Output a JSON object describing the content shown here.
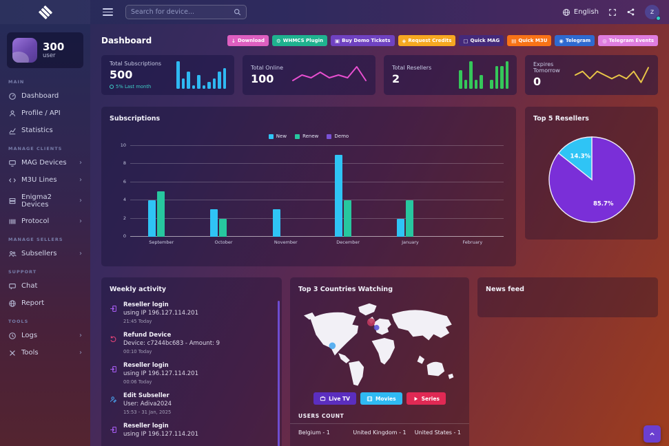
{
  "topbar": {
    "search_placeholder": "Search for device...",
    "language": "English",
    "avatar_initial": "z"
  },
  "header": {
    "title": "Dashboard",
    "badges": [
      {
        "label": "Download",
        "icon_char": "↓",
        "color": "#de5fc0"
      },
      {
        "label": "WHMCS Plugin",
        "icon_char": "⚙",
        "color": "#1fb28f"
      },
      {
        "label": "Buy Demo Tickets",
        "icon_char": "▣",
        "color": "#6f42c1"
      },
      {
        "label": "Request Credits",
        "icon_char": "◈",
        "color": "#f6a821"
      },
      {
        "label": "Quick MAG",
        "icon_char": "▢",
        "color": "#44297a"
      },
      {
        "label": "Quick M3U",
        "icon_char": "▤",
        "color": "#f97316"
      },
      {
        "label": "Telegram",
        "icon_char": "◉",
        "color": "#2e6ad1"
      },
      {
        "label": "Telegram Events",
        "icon_char": "◎",
        "color": "#df7ddf"
      }
    ]
  },
  "sidebar": {
    "user_count": "300",
    "user_label": "user",
    "sections": [
      {
        "title": "MAIN",
        "items": [
          {
            "label": "Dashboard"
          },
          {
            "label": "Profile / API"
          },
          {
            "label": "Statistics"
          }
        ]
      },
      {
        "title": "MANAGE CLIENTS",
        "items": [
          {
            "label": "MAG Devices",
            "chevron": "›"
          },
          {
            "label": "M3U Lines",
            "chevron": "›"
          },
          {
            "label": "Enigma2 Devices",
            "chevron": "›"
          },
          {
            "label": "Protocol",
            "chevron": "›"
          }
        ]
      },
      {
        "title": "MANAGE SELLERS",
        "items": [
          {
            "label": "Subsellers",
            "chevron": "›"
          }
        ]
      },
      {
        "title": "SUPPORT",
        "items": [
          {
            "label": "Chat"
          },
          {
            "label": "Report"
          }
        ]
      },
      {
        "title": "TOOLS",
        "items": [
          {
            "label": "Logs",
            "chevron": "›"
          },
          {
            "label": "Tools",
            "chevron": "›"
          }
        ]
      }
    ]
  },
  "stats": [
    {
      "label": "Total Subscriptions",
      "value": "500",
      "note": "5% Last month",
      "spark": {
        "type": "bar",
        "color": "#2fb9f2",
        "values": [
          8,
          3,
          5,
          1,
          4,
          1,
          2,
          3,
          5,
          6
        ]
      }
    },
    {
      "label": "Total Online",
      "value": "100",
      "spark": {
        "type": "line",
        "color": "#e84fd0",
        "values": [
          2,
          4,
          3,
          5,
          3,
          4,
          3,
          7,
          2
        ]
      }
    },
    {
      "label": "Total Resellers",
      "value": "2",
      "spark": {
        "type": "bar",
        "color": "#35c75a",
        "values": [
          4,
          2,
          6,
          2,
          3,
          0,
          2,
          5,
          5,
          6
        ]
      }
    },
    {
      "label": "Expires Tomorrow",
      "value": "0",
      "spark": {
        "type": "line",
        "color": "#e8c547",
        "values": [
          3,
          4,
          2,
          4,
          3,
          2,
          3,
          2,
          4,
          1,
          5
        ]
      }
    }
  ],
  "chart_data": [
    {
      "type": "bar",
      "title": "Subscriptions",
      "categories": [
        "September",
        "October",
        "November",
        "December",
        "January",
        "February"
      ],
      "series": [
        {
          "name": "New",
          "color": "#2fc4f5",
          "values": [
            4,
            3,
            3,
            9,
            2,
            0
          ]
        },
        {
          "name": "Renew",
          "color": "#27c79f",
          "values": [
            5,
            2,
            0,
            4,
            4,
            0
          ]
        },
        {
          "name": "Demo",
          "color": "#7a52d6",
          "values": [
            0,
            0,
            0,
            0,
            0,
            0
          ]
        }
      ],
      "ylim": [
        0,
        10
      ],
      "yticks": [
        0,
        2,
        4,
        6,
        8,
        10
      ],
      "grid": true,
      "legend_position": "top"
    },
    {
      "type": "pie",
      "title": "Top 5 Resellers",
      "labels": [
        "85.7%",
        "14.3%"
      ],
      "values": [
        85.7,
        14.3
      ],
      "colors": [
        "#7a2fd8",
        "#2fc4f5"
      ]
    }
  ],
  "activity": {
    "title": "Weekly activity",
    "items": [
      {
        "icon": "login-icon",
        "title": "Reseller login",
        "desc": "using IP 196.127.114.201",
        "time": "21:45 Today"
      },
      {
        "icon": "refund-icon",
        "title": "Refund Device",
        "desc": "Device: c7244bc683 - Amount: 9",
        "time": "00:10 Today"
      },
      {
        "icon": "login-icon",
        "title": "Reseller login",
        "desc": "using IP 196.127.114.201",
        "time": "00:06 Today"
      },
      {
        "icon": "edit-icon",
        "title": "Edit Subseller",
        "desc": "User: Adiva2024",
        "time": "15:53 - 31 Jan, 2025"
      },
      {
        "icon": "login-icon",
        "title": "Reseller login",
        "desc": "using IP 196.127.114.201",
        "time": ""
      }
    ]
  },
  "map_card": {
    "title": "Top 3 Countries Watching",
    "buttons": [
      {
        "label": "Live TV",
        "color": "#5b2ebf"
      },
      {
        "label": "Movies",
        "color": "#2fb9f2"
      },
      {
        "label": "Series",
        "color": "#e02954"
      }
    ],
    "users_count_title": "USERS COUNT",
    "countries": [
      "Belgium - 1",
      "United Kingdom - 1",
      "United States - 1"
    ]
  },
  "news_feed": {
    "title": "News feed"
  }
}
